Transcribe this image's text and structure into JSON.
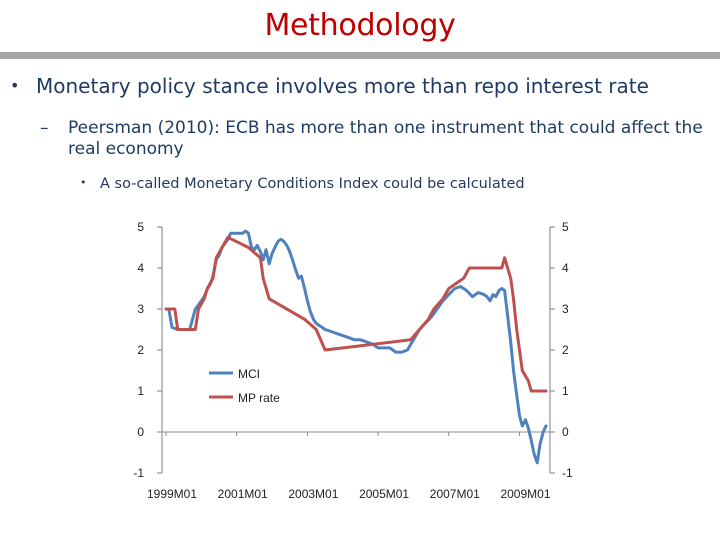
{
  "slide": {
    "title": "Methodology",
    "bullet1": "Monetary policy stance involves more than repo interest rate",
    "bullet2": "Peersman (2010): ECB has more than one instrument that could affect the real economy",
    "bullet3": "A so-called Monetary Conditions Index could be calculated",
    "bullet_mark": "•",
    "dash_mark": "–"
  },
  "colors": {
    "title": "#c00000",
    "text": "#1f3b63",
    "mci": "#4f81bd",
    "mp": "#c0504d"
  },
  "chart_data": {
    "type": "line",
    "title": "",
    "xlabel": "",
    "ylabel": "",
    "ylim": [
      -1,
      5
    ],
    "yticks": [
      "5",
      "4",
      "3",
      "2",
      "1",
      "0",
      "-1"
    ],
    "xlim": [
      1999,
      2009.75
    ],
    "xticks": [
      {
        "label": "1999M01",
        "x": 1999
      },
      {
        "label": "2001M01",
        "x": 2001
      },
      {
        "label": "2003M01",
        "x": 2003
      },
      {
        "label": "2005M01",
        "x": 2005
      },
      {
        "label": "2007M01",
        "x": 2007
      },
      {
        "label": "2009M01",
        "x": 2009
      }
    ],
    "legend": [
      "MCI",
      "MP rate"
    ],
    "series": [
      {
        "name": "MCI",
        "points": [
          [
            1999.0,
            3.0
          ],
          [
            1999.08,
            3.0
          ],
          [
            1999.17,
            2.55
          ],
          [
            1999.33,
            2.5
          ],
          [
            1999.5,
            2.5
          ],
          [
            1999.67,
            2.5
          ],
          [
            1999.75,
            2.75
          ],
          [
            1999.83,
            3.0
          ],
          [
            1999.92,
            3.1
          ],
          [
            2000.0,
            3.2
          ],
          [
            2000.08,
            3.3
          ],
          [
            2000.17,
            3.5
          ],
          [
            2000.25,
            3.6
          ],
          [
            2000.33,
            3.8
          ],
          [
            2000.42,
            4.2
          ],
          [
            2000.5,
            4.3
          ],
          [
            2000.58,
            4.5
          ],
          [
            2000.67,
            4.6
          ],
          [
            2000.75,
            4.7
          ],
          [
            2000.83,
            4.85
          ],
          [
            2000.92,
            4.85
          ],
          [
            2001.0,
            4.85
          ],
          [
            2001.08,
            4.85
          ],
          [
            2001.17,
            4.85
          ],
          [
            2001.25,
            4.9
          ],
          [
            2001.33,
            4.85
          ],
          [
            2001.42,
            4.5
          ],
          [
            2001.5,
            4.45
          ],
          [
            2001.58,
            4.55
          ],
          [
            2001.67,
            4.4
          ],
          [
            2001.75,
            4.2
          ],
          [
            2001.83,
            4.45
          ],
          [
            2001.92,
            4.1
          ],
          [
            2002.0,
            4.35
          ],
          [
            2002.08,
            4.5
          ],
          [
            2002.17,
            4.65
          ],
          [
            2002.25,
            4.7
          ],
          [
            2002.33,
            4.65
          ],
          [
            2002.42,
            4.55
          ],
          [
            2002.5,
            4.4
          ],
          [
            2002.58,
            4.2
          ],
          [
            2002.67,
            3.95
          ],
          [
            2002.75,
            3.75
          ],
          [
            2002.83,
            3.8
          ],
          [
            2002.92,
            3.5
          ],
          [
            2003.0,
            3.2
          ],
          [
            2003.08,
            2.95
          ],
          [
            2003.17,
            2.75
          ],
          [
            2003.25,
            2.65
          ],
          [
            2003.33,
            2.6
          ],
          [
            2003.42,
            2.55
          ],
          [
            2003.5,
            2.5
          ],
          [
            2003.67,
            2.45
          ],
          [
            2003.83,
            2.4
          ],
          [
            2004.0,
            2.35
          ],
          [
            2004.17,
            2.3
          ],
          [
            2004.33,
            2.25
          ],
          [
            2004.5,
            2.25
          ],
          [
            2004.67,
            2.2
          ],
          [
            2004.83,
            2.15
          ],
          [
            2005.0,
            2.05
          ],
          [
            2005.17,
            2.05
          ],
          [
            2005.33,
            2.05
          ],
          [
            2005.5,
            1.95
          ],
          [
            2005.67,
            1.95
          ],
          [
            2005.83,
            2.0
          ],
          [
            2006.0,
            2.25
          ],
          [
            2006.17,
            2.5
          ],
          [
            2006.33,
            2.65
          ],
          [
            2006.5,
            2.8
          ],
          [
            2006.67,
            3.0
          ],
          [
            2006.83,
            3.2
          ],
          [
            2007.0,
            3.35
          ],
          [
            2007.17,
            3.5
          ],
          [
            2007.33,
            3.55
          ],
          [
            2007.5,
            3.45
          ],
          [
            2007.67,
            3.3
          ],
          [
            2007.83,
            3.4
          ],
          [
            2008.0,
            3.35
          ],
          [
            2008.08,
            3.3
          ],
          [
            2008.17,
            3.2
          ],
          [
            2008.25,
            3.35
          ],
          [
            2008.33,
            3.3
          ],
          [
            2008.42,
            3.45
          ],
          [
            2008.5,
            3.5
          ],
          [
            2008.58,
            3.45
          ],
          [
            2008.67,
            2.8
          ],
          [
            2008.75,
            2.2
          ],
          [
            2008.83,
            1.5
          ],
          [
            2008.92,
            0.9
          ],
          [
            2009.0,
            0.4
          ],
          [
            2009.08,
            0.15
          ],
          [
            2009.17,
            0.3
          ],
          [
            2009.25,
            0.1
          ],
          [
            2009.33,
            -0.2
          ],
          [
            2009.42,
            -0.55
          ],
          [
            2009.5,
            -0.75
          ],
          [
            2009.58,
            -0.3
          ],
          [
            2009.67,
            0.0
          ],
          [
            2009.75,
            0.15
          ]
        ]
      },
      {
        "name": "MP rate",
        "points": [
          [
            1999.0,
            3.0
          ],
          [
            1999.25,
            3.0
          ],
          [
            1999.33,
            2.5
          ],
          [
            1999.83,
            2.5
          ],
          [
            1999.92,
            3.0
          ],
          [
            2000.08,
            3.25
          ],
          [
            2000.17,
            3.5
          ],
          [
            2000.33,
            3.75
          ],
          [
            2000.42,
            4.25
          ],
          [
            2000.75,
            4.75
          ],
          [
            2001.33,
            4.5
          ],
          [
            2001.67,
            4.25
          ],
          [
            2001.75,
            3.75
          ],
          [
            2001.92,
            3.25
          ],
          [
            2002.92,
            2.75
          ],
          [
            2003.25,
            2.5
          ],
          [
            2003.5,
            2.0
          ],
          [
            2005.92,
            2.25
          ],
          [
            2006.17,
            2.5
          ],
          [
            2006.42,
            2.75
          ],
          [
            2006.58,
            3.0
          ],
          [
            2006.83,
            3.25
          ],
          [
            2007.0,
            3.5
          ],
          [
            2007.42,
            3.75
          ],
          [
            2007.58,
            4.0
          ],
          [
            2007.75,
            4.0
          ],
          [
            2008.5,
            4.0
          ],
          [
            2008.58,
            4.25
          ],
          [
            2008.75,
            3.75
          ],
          [
            2008.83,
            3.25
          ],
          [
            2008.92,
            2.5
          ],
          [
            2009.0,
            2.0
          ],
          [
            2009.08,
            1.5
          ],
          [
            2009.25,
            1.25
          ],
          [
            2009.33,
            1.0
          ],
          [
            2009.75,
            1.0
          ]
        ]
      }
    ]
  }
}
